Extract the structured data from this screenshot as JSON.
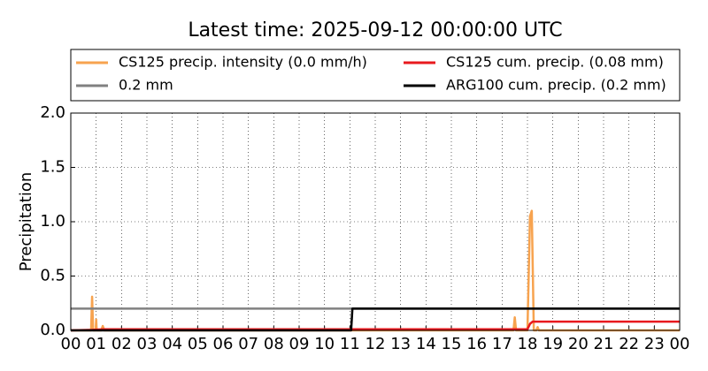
{
  "chart_data": {
    "type": "line",
    "title": "Latest time: 2025-09-12 00:00:00 UTC",
    "y_label": "Precipitation",
    "xlim": [
      0,
      24
    ],
    "xticks": [
      {
        "value": 0,
        "label": "00"
      },
      {
        "value": 1,
        "label": "01"
      },
      {
        "value": 2,
        "label": "02"
      },
      {
        "value": 3,
        "label": "03"
      },
      {
        "value": 4,
        "label": "04"
      },
      {
        "value": 5,
        "label": "05"
      },
      {
        "value": 6,
        "label": "06"
      },
      {
        "value": 7,
        "label": "07"
      },
      {
        "value": 8,
        "label": "08"
      },
      {
        "value": 9,
        "label": "09"
      },
      {
        "value": 10,
        "label": "10"
      },
      {
        "value": 11,
        "label": "11"
      },
      {
        "value": 12,
        "label": "12"
      },
      {
        "value": 13,
        "label": "13"
      },
      {
        "value": 14,
        "label": "14"
      },
      {
        "value": 15,
        "label": "15"
      },
      {
        "value": 16,
        "label": "16"
      },
      {
        "value": 17,
        "label": "17"
      },
      {
        "value": 18,
        "label": "18"
      },
      {
        "value": 19,
        "label": "19"
      },
      {
        "value": 20,
        "label": "20"
      },
      {
        "value": 21,
        "label": "21"
      },
      {
        "value": 22,
        "label": "22"
      },
      {
        "value": 23,
        "label": "23"
      },
      {
        "value": 24,
        "label": "00"
      }
    ],
    "ylim": [
      0,
      2.0
    ],
    "yticks": [
      {
        "value": 0,
        "label": "0.0"
      },
      {
        "value": 0.5,
        "label": "0.5"
      },
      {
        "value": 1.0,
        "label": "1.0"
      },
      {
        "value": 1.5,
        "label": "1.5"
      },
      {
        "value": 2.0,
        "label": "2.0"
      }
    ],
    "grid": true,
    "legend": "top",
    "series": [
      {
        "name": "CS125 precip. intensity (0.0 mm/h)",
        "color": "#f7a34f",
        "x": [
          0,
          0.8,
          0.84,
          0.88,
          0.98,
          1.0,
          1.02,
          1.2,
          1.26,
          1.32,
          17.45,
          17.5,
          17.55,
          18.0,
          18.1,
          18.17,
          18.25,
          18.35,
          18.4,
          18.45,
          24
        ],
        "values": [
          0,
          0,
          0.31,
          0,
          0,
          0.1,
          0,
          0,
          0.04,
          0,
          0,
          0.12,
          0,
          0,
          1.05,
          1.1,
          0,
          0,
          0.03,
          0,
          0
        ]
      },
      {
        "name": "0.2 mm",
        "color": "#808080",
        "x": [
          0,
          24
        ],
        "values": [
          0.2,
          0.2
        ]
      },
      {
        "name": "CS125 cum. precip. (0.08 mm)",
        "color": "#e8191e",
        "x": [
          0,
          0.85,
          1.3,
          18.0,
          18.1,
          18.2,
          24
        ],
        "values": [
          0,
          0.005,
          0.01,
          0.01,
          0.06,
          0.08,
          0.08
        ]
      },
      {
        "name": "ARG100 cum. precip. (0.2 mm)",
        "color": "#000000",
        "x": [
          0,
          11.05,
          11.1,
          24
        ],
        "values": [
          0,
          0,
          0.2,
          0.2
        ]
      }
    ]
  }
}
